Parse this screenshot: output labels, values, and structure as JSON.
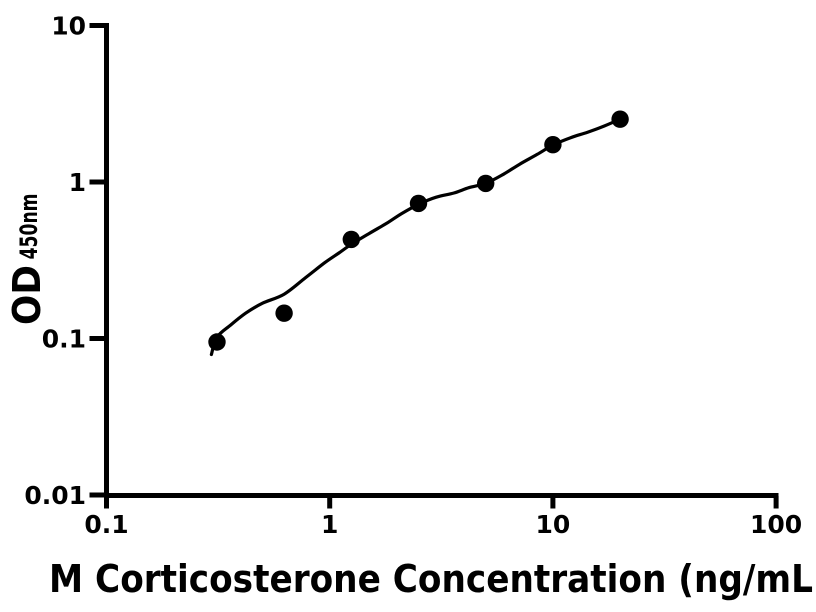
{
  "figure": {
    "background_color": "#ffffff",
    "ink_color": "#000000"
  },
  "chart_data": {
    "type": "scatter",
    "title": "",
    "xlabel": "M Corticosterone Concentration (ng/mL",
    "ylabel_main": "OD",
    "ylabel_sub": "450nm",
    "x_scale": "log",
    "y_scale": "log",
    "xlim": [
      0.1,
      100
    ],
    "ylim": [
      0.01,
      10
    ],
    "grid": false,
    "legend": null,
    "x_ticks": [
      {
        "value": 0.1,
        "label": "0.1"
      },
      {
        "value": 1,
        "label": "1"
      },
      {
        "value": 10,
        "label": "10"
      },
      {
        "value": 100,
        "label": "100"
      }
    ],
    "y_ticks": [
      {
        "value": 10,
        "label": "10"
      },
      {
        "value": 1,
        "label": "1"
      },
      {
        "value": 0.1,
        "label": "0.1"
      },
      {
        "value": 0.01,
        "label": "0.01"
      }
    ],
    "series": [
      {
        "name": "corticosterone-standard-curve",
        "marker": "filled-circle",
        "color": "#000000",
        "points": [
          {
            "x": 0.3125,
            "y": 0.095
          },
          {
            "x": 0.625,
            "y": 0.145
          },
          {
            "x": 1.25,
            "y": 0.43
          },
          {
            "x": 2.5,
            "y": 0.73
          },
          {
            "x": 5,
            "y": 0.98
          },
          {
            "x": 10,
            "y": 1.73
          },
          {
            "x": 20,
            "y": 2.52
          }
        ]
      }
    ],
    "fit_curve": {
      "color": "#000000",
      "samples": [
        [
          0.295,
          0.079
        ],
        [
          0.3125,
          0.102
        ],
        [
          0.36,
          0.122
        ],
        [
          0.42,
          0.145
        ],
        [
          0.5,
          0.168
        ],
        [
          0.625,
          0.192
        ],
        [
          0.78,
          0.245
        ],
        [
          0.95,
          0.305
        ],
        [
          1.1,
          0.352
        ],
        [
          1.25,
          0.4
        ],
        [
          1.5,
          0.468
        ],
        [
          1.8,
          0.545
        ],
        [
          2.1,
          0.628
        ],
        [
          2.5,
          0.72
        ],
        [
          3.0,
          0.8
        ],
        [
          3.6,
          0.85
        ],
        [
          4.2,
          0.92
        ],
        [
          5.0,
          0.98
        ],
        [
          6.0,
          1.12
        ],
        [
          7.1,
          1.3
        ],
        [
          8.5,
          1.5
        ],
        [
          10.0,
          1.72
        ],
        [
          12.0,
          1.92
        ],
        [
          14.3,
          2.08
        ],
        [
          17.0,
          2.28
        ],
        [
          20.0,
          2.52
        ]
      ]
    }
  }
}
